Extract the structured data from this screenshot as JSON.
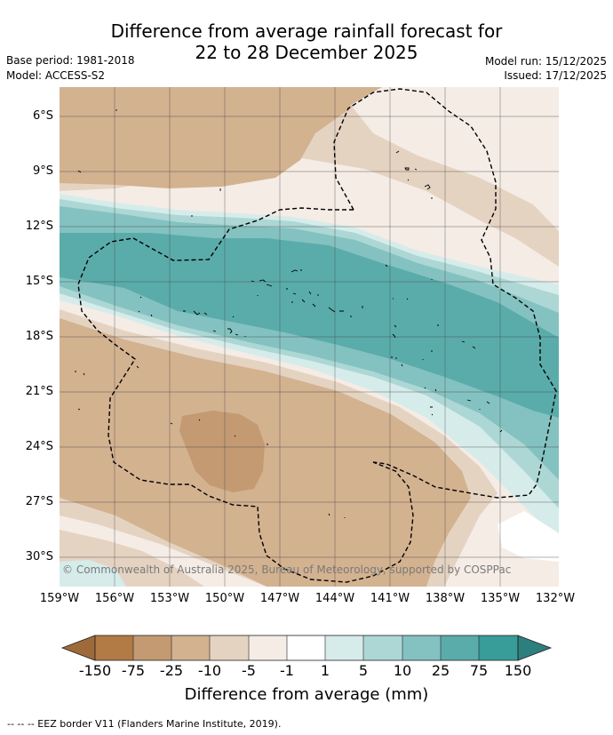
{
  "header": {
    "title_line1": "Difference from average rainfall forecast for",
    "title_line2": "22 to 28 December 2025",
    "base_period": "Base period: 1981-2018",
    "model": "Model: ACCESS-S2",
    "model_run": "Model run: 15/12/2025",
    "issued": "Issued: 17/12/2025"
  },
  "map": {
    "lat_labels": [
      "6°S",
      "9°S",
      "12°S",
      "15°S",
      "18°S",
      "21°S",
      "24°S",
      "27°S",
      "30°S"
    ],
    "lon_labels": [
      "159°W",
      "156°W",
      "153°W",
      "150°W",
      "147°W",
      "144°W",
      "141°W",
      "138°W",
      "135°W",
      "132°W"
    ],
    "copyright": "© Commonwealth of Australia 2025, Bureau of Meteorology, supported by COSPPac"
  },
  "colorbar": {
    "labels": [
      "-150",
      "-75",
      "-25",
      "-10",
      "-5",
      "-1",
      "1",
      "5",
      "10",
      "25",
      "75",
      "150"
    ],
    "colors": [
      "#9f6a3a",
      "#b27a44",
      "#c39a72",
      "#d3b290",
      "#e5d3c2",
      "#f5ece6",
      "#ffffff",
      "#d6ecea",
      "#acd7d5",
      "#84c2c1",
      "#5aacab",
      "#389c99",
      "#2d7f7d"
    ],
    "title": "Difference from average (mm)"
  },
  "legend": {
    "text": "--  --  -- EEZ border V11 (Flanders Marine Institute, 2019)."
  }
}
